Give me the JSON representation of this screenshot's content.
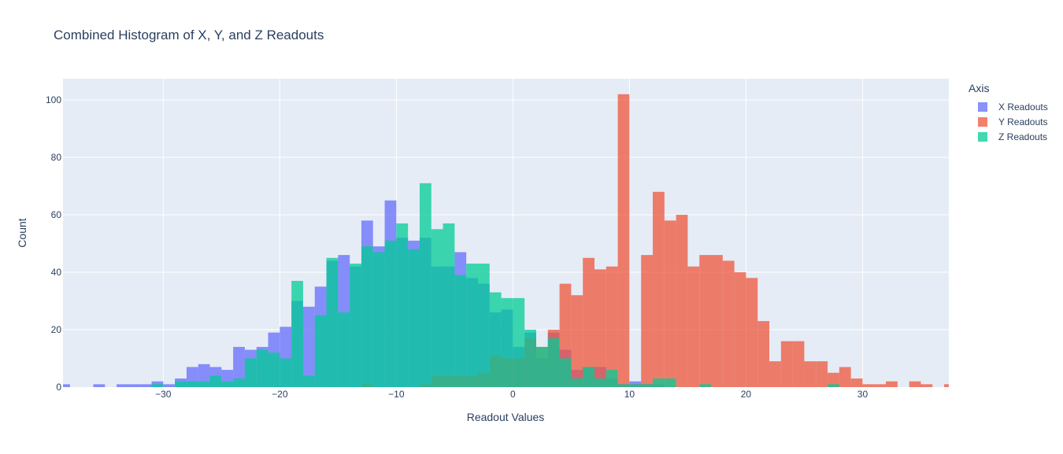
{
  "chart_data": {
    "type": "bar",
    "title": "Combined Histogram of X, Y, and Z Readouts",
    "xlabel": "Readout Values",
    "ylabel": "Count",
    "xlim": [
      -38.6,
      37.4
    ],
    "ylim": [
      0,
      107.4
    ],
    "bin_width": 1,
    "x_ticks": [
      -30,
      -20,
      -10,
      0,
      10,
      20,
      30
    ],
    "x_tick_labels": [
      "−30",
      "−20",
      "−10",
      "0",
      "10",
      "20",
      "30"
    ],
    "y_ticks": [
      0,
      20,
      40,
      60,
      80,
      100
    ],
    "y_tick_labels": [
      "0",
      "20",
      "40",
      "60",
      "80",
      "100"
    ],
    "grid": true,
    "barmode": "overlay",
    "legend": {
      "title": "Axis",
      "position": "right"
    },
    "series": [
      {
        "name": "X Readouts",
        "color": "#636efa",
        "bins": [
          [
            -39,
            1
          ],
          [
            -36,
            1
          ],
          [
            -34,
            1
          ],
          [
            -33,
            1
          ],
          [
            -32,
            1
          ],
          [
            -31,
            2
          ],
          [
            -30,
            1
          ],
          [
            -29,
            3
          ],
          [
            -28,
            7
          ],
          [
            -27,
            8
          ],
          [
            -26,
            7
          ],
          [
            -25,
            6
          ],
          [
            -24,
            14
          ],
          [
            -23,
            13
          ],
          [
            -22,
            14
          ],
          [
            -21,
            19
          ],
          [
            -20,
            21
          ],
          [
            -19,
            30
          ],
          [
            -18,
            28
          ],
          [
            -17,
            35
          ],
          [
            -16,
            44
          ],
          [
            -15,
            46
          ],
          [
            -14,
            42
          ],
          [
            -13,
            58
          ],
          [
            -12,
            49
          ],
          [
            -11,
            65
          ],
          [
            -10,
            52
          ],
          [
            -9,
            51
          ],
          [
            -8,
            52
          ],
          [
            -7,
            42
          ],
          [
            -6,
            42
          ],
          [
            -5,
            47
          ],
          [
            -4,
            38
          ],
          [
            -3,
            36
          ],
          [
            -2,
            26
          ],
          [
            -1,
            27
          ],
          [
            0,
            14
          ],
          [
            1,
            19
          ],
          [
            2,
            10
          ],
          [
            3,
            19
          ],
          [
            4,
            13
          ],
          [
            5,
            6
          ],
          [
            6,
            7
          ],
          [
            7,
            7
          ],
          [
            8,
            3
          ],
          [
            9,
            1
          ],
          [
            10,
            2
          ],
          [
            11,
            1
          ],
          [
            12,
            1
          ]
        ]
      },
      {
        "name": "Y Readouts",
        "color": "#ef553b",
        "bins": [
          [
            -13,
            1
          ],
          [
            -8,
            1
          ],
          [
            -7,
            4
          ],
          [
            -6,
            4
          ],
          [
            -5,
            4
          ],
          [
            -4,
            4
          ],
          [
            -3,
            5
          ],
          [
            -2,
            11
          ],
          [
            -1,
            10
          ],
          [
            0,
            10
          ],
          [
            1,
            17
          ],
          [
            2,
            14
          ],
          [
            3,
            20
          ],
          [
            4,
            36
          ],
          [
            5,
            32
          ],
          [
            6,
            45
          ],
          [
            7,
            41
          ],
          [
            8,
            42
          ],
          [
            9,
            102
          ],
          [
            10,
            1
          ],
          [
            11,
            46
          ],
          [
            12,
            68
          ],
          [
            13,
            58
          ],
          [
            14,
            60
          ],
          [
            15,
            42
          ],
          [
            16,
            46
          ],
          [
            17,
            46
          ],
          [
            18,
            44
          ],
          [
            19,
            40
          ],
          [
            20,
            38
          ],
          [
            21,
            23
          ],
          [
            22,
            9
          ],
          [
            23,
            16
          ],
          [
            24,
            16
          ],
          [
            25,
            9
          ],
          [
            26,
            9
          ],
          [
            27,
            5
          ],
          [
            28,
            7
          ],
          [
            29,
            3
          ],
          [
            30,
            1
          ],
          [
            31,
            1
          ],
          [
            32,
            2
          ],
          [
            34,
            2
          ],
          [
            35,
            1
          ],
          [
            37,
            1
          ]
        ]
      },
      {
        "name": "Z Readouts",
        "color": "#00cc96",
        "bins": [
          [
            -31,
            1
          ],
          [
            -29,
            2
          ],
          [
            -28,
            2
          ],
          [
            -27,
            2
          ],
          [
            -26,
            4
          ],
          [
            -25,
            2
          ],
          [
            -24,
            3
          ],
          [
            -23,
            10
          ],
          [
            -22,
            13
          ],
          [
            -21,
            12
          ],
          [
            -20,
            10
          ],
          [
            -19,
            37
          ],
          [
            -18,
            4
          ],
          [
            -17,
            25
          ],
          [
            -16,
            45
          ],
          [
            -15,
            26
          ],
          [
            -14,
            43
          ],
          [
            -13,
            49
          ],
          [
            -12,
            47
          ],
          [
            -11,
            51
          ],
          [
            -10,
            57
          ],
          [
            -9,
            48
          ],
          [
            -8,
            71
          ],
          [
            -7,
            55
          ],
          [
            -6,
            57
          ],
          [
            -5,
            39
          ],
          [
            -4,
            43
          ],
          [
            -3,
            43
          ],
          [
            -2,
            33
          ],
          [
            -1,
            31
          ],
          [
            0,
            31
          ],
          [
            1,
            20
          ],
          [
            2,
            14
          ],
          [
            3,
            17
          ],
          [
            4,
            10
          ],
          [
            5,
            3
          ],
          [
            6,
            7
          ],
          [
            7,
            3
          ],
          [
            8,
            6
          ],
          [
            9,
            1
          ],
          [
            10,
            1
          ],
          [
            11,
            1
          ],
          [
            12,
            3
          ],
          [
            13,
            3
          ],
          [
            16,
            1
          ],
          [
            27,
            1
          ]
        ]
      }
    ]
  }
}
